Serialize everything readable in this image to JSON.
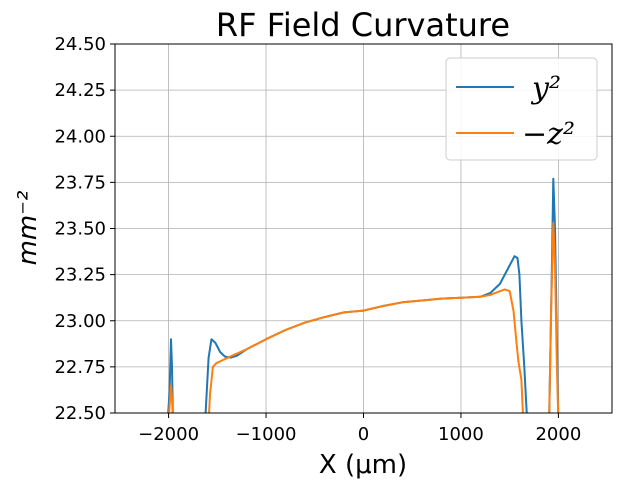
{
  "chart_data": {
    "type": "line",
    "title": "RF Field Curvature",
    "xlabel": "X (μm)",
    "ylabel": "mm⁻²",
    "xlim": [
      -2550,
      2550
    ],
    "ylim": [
      22.5,
      24.5
    ],
    "xticks": [
      -2000,
      -1000,
      0,
      1000,
      2000
    ],
    "xtick_labels": [
      "−2000",
      "−1000",
      "0",
      "1000",
      "2000"
    ],
    "yticks": [
      22.5,
      22.75,
      23.0,
      23.25,
      23.5,
      23.75,
      24.0,
      24.25,
      24.5
    ],
    "ytick_labels": [
      "22.50",
      "22.75",
      "23.00",
      "23.25",
      "23.50",
      "23.75",
      "24.00",
      "24.25",
      "24.50"
    ],
    "grid": true,
    "legend_position": "top-right",
    "series": [
      {
        "name": "y²",
        "color": "#1f77b4",
        "segments": [
          [
            [
              -2010,
              22.45
            ],
            [
              -1990,
              22.62
            ],
            [
              -1975,
              22.9
            ],
            [
              -1965,
              22.75
            ],
            [
              -1955,
              22.45
            ]
          ],
          [
            [
              -1625,
              22.45
            ],
            [
              -1590,
              22.8
            ],
            [
              -1560,
              22.9
            ],
            [
              -1520,
              22.88
            ],
            [
              -1470,
              22.83
            ],
            [
              -1420,
              22.805
            ],
            [
              -1360,
              22.8
            ],
            [
              -1300,
              22.81
            ],
            [
              -1200,
              22.845
            ],
            [
              -1000,
              22.9
            ],
            [
              -800,
              22.95
            ],
            [
              -600,
              22.99
            ],
            [
              -400,
              23.02
            ],
            [
              -200,
              23.045
            ],
            [
              0,
              23.055
            ],
            [
              200,
              23.08
            ],
            [
              400,
              23.1
            ],
            [
              600,
              23.11
            ],
            [
              800,
              23.12
            ],
            [
              1000,
              23.125
            ],
            [
              1200,
              23.13
            ],
            [
              1300,
              23.15
            ],
            [
              1400,
              23.2
            ],
            [
              1480,
              23.28
            ],
            [
              1550,
              23.35
            ],
            [
              1580,
              23.34
            ],
            [
              1600,
              23.25
            ],
            [
              1620,
              23.0
            ],
            [
              1650,
              22.75
            ],
            [
              1680,
              22.45
            ]
          ],
          [
            [
              1905,
              22.45
            ],
            [
              1930,
              23.2
            ],
            [
              1948,
              23.77
            ],
            [
              1965,
              23.5
            ],
            [
              1985,
              22.9
            ],
            [
              2000,
              22.45
            ]
          ]
        ]
      },
      {
        "name": "−z²",
        "color": "#ff7f0e",
        "segments": [
          [
            [
              -2000,
              22.45
            ],
            [
              -1985,
              22.58
            ],
            [
              -1975,
              22.65
            ],
            [
              -1965,
              22.58
            ],
            [
              -1955,
              22.45
            ]
          ],
          [
            [
              -1590,
              22.45
            ],
            [
              -1575,
              22.6
            ],
            [
              -1545,
              22.75
            ],
            [
              -1510,
              22.77
            ],
            [
              -1450,
              22.785
            ],
            [
              -1350,
              22.81
            ],
            [
              -1200,
              22.845
            ],
            [
              -1000,
              22.9
            ],
            [
              -800,
              22.95
            ],
            [
              -600,
              22.99
            ],
            [
              -400,
              23.02
            ],
            [
              -200,
              23.045
            ],
            [
              0,
              23.055
            ],
            [
              200,
              23.08
            ],
            [
              400,
              23.1
            ],
            [
              600,
              23.11
            ],
            [
              800,
              23.12
            ],
            [
              1000,
              23.125
            ],
            [
              1200,
              23.13
            ],
            [
              1300,
              23.14
            ],
            [
              1400,
              23.16
            ],
            [
              1450,
              23.17
            ],
            [
              1500,
              23.16
            ],
            [
              1540,
              23.05
            ],
            [
              1570,
              22.88
            ],
            [
              1590,
              22.78
            ],
            [
              1620,
              22.68
            ],
            [
              1640,
              22.45
            ]
          ],
          [
            [
              1905,
              22.45
            ],
            [
              1925,
              23.05
            ],
            [
              1948,
              23.53
            ],
            [
              1965,
              23.3
            ],
            [
              1985,
              22.75
            ],
            [
              2000,
              22.45
            ]
          ]
        ]
      }
    ]
  }
}
